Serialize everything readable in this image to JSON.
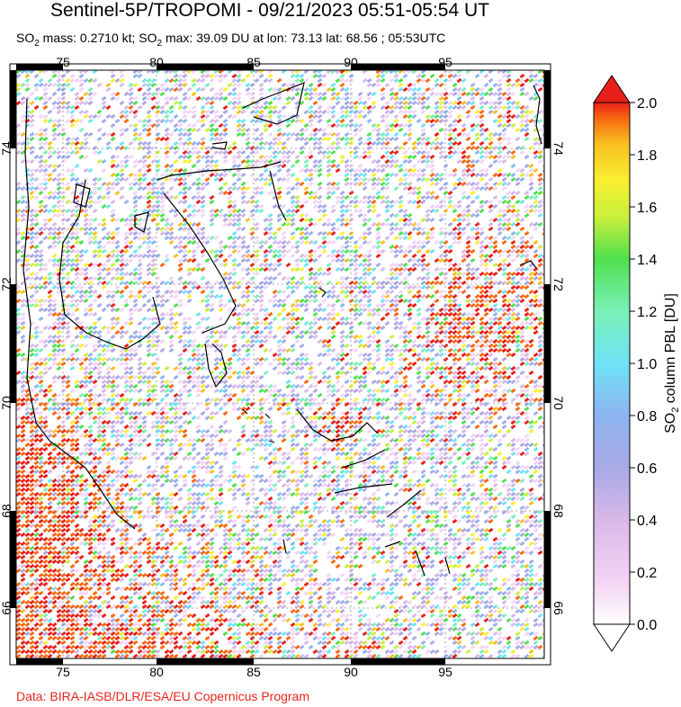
{
  "header": {
    "title": "Sentinel-5P/TROPOMI - 09/21/2023 05:51-05:54 UT",
    "subtitle_prefix": "SO",
    "subtitle_sub": "2",
    "subtitle_mass": " mass: 0.2710 kt; SO",
    "subtitle_sub2": "2",
    "subtitle_rest": " max: 39.09 DU at lon: 73.13 lat: 68.56 ; 05:53UTC"
  },
  "credit": "Data: BIRA-IASB/DLR/ESA/EU Copernicus Program",
  "map": {
    "lon_ticks": [
      "75",
      "80",
      "85",
      "90",
      "95"
    ],
    "lat_ticks": [
      "74",
      "72",
      "70",
      "68",
      "66"
    ],
    "colors": {
      "frame": "#000000",
      "coast": "#000000",
      "grid": "#8c8c8c"
    }
  },
  "colorbar": {
    "label_main": "SO",
    "label_sub": "2",
    "label_rest": " column PBL [DU]",
    "ticks": [
      "2.0",
      "1.8",
      "1.6",
      "1.4",
      "1.2",
      "1.0",
      "0.8",
      "0.6",
      "0.4",
      "0.2",
      "0.0"
    ],
    "range": [
      0.0,
      2.0
    ],
    "colors": [
      "#ffffff",
      "#f4d4f4",
      "#d8b8e8",
      "#a9a9e6",
      "#8db4f0",
      "#6ee3f6",
      "#7af0b8",
      "#4fe04f",
      "#c8f03c",
      "#f8f030",
      "#f8c020",
      "#f86810",
      "#e8201a"
    ]
  }
}
